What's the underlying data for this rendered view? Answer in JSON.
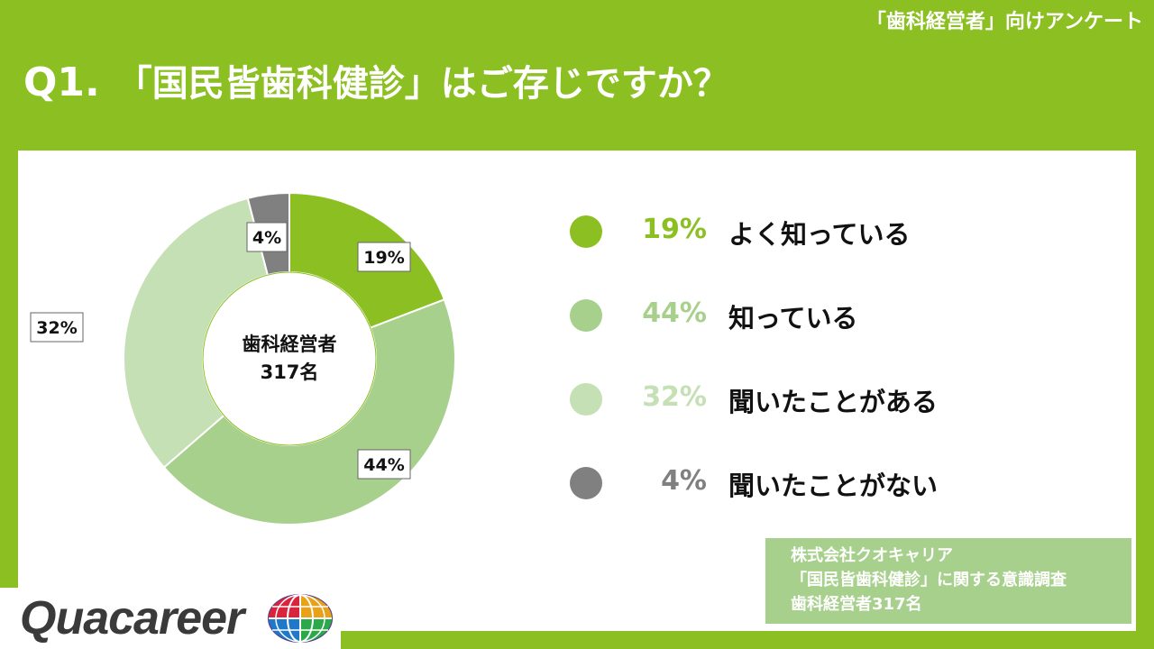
{
  "header": {
    "survey_tag": "「歯科経営者」向けアンケート",
    "question_number": "Q1.",
    "question_text": "「国民皆歯科健診」はご存じですか？"
  },
  "chart_data": {
    "type": "pie",
    "donut": true,
    "center_label": [
      "歯科経営者",
      "317名"
    ],
    "slices": [
      {
        "label": "よく知っている",
        "value": 19,
        "display": "19%",
        "color": "#8bbf22"
      },
      {
        "label": "知っている",
        "value": 44,
        "display": "44%",
        "color": "#a8d08d"
      },
      {
        "label": "聞いたことがある",
        "value": 32,
        "display": "32%",
        "color": "#c5e0b4"
      },
      {
        "label": "聞いたことがない",
        "value": 4,
        "display": "4%",
        "color": "#808080"
      }
    ],
    "legend_position": "right"
  },
  "legend_pct_colors": [
    "#8bbf22",
    "#a8d08d",
    "#c5e0b4",
    "#808080"
  ],
  "source": {
    "lines": [
      "株式会社クオキャリア",
      "「国民皆歯科健診」に関する意識調査",
      "歯科経営者317名"
    ]
  },
  "logo": {
    "text": "Quacareer",
    "icon": "globe-logo-icon"
  }
}
